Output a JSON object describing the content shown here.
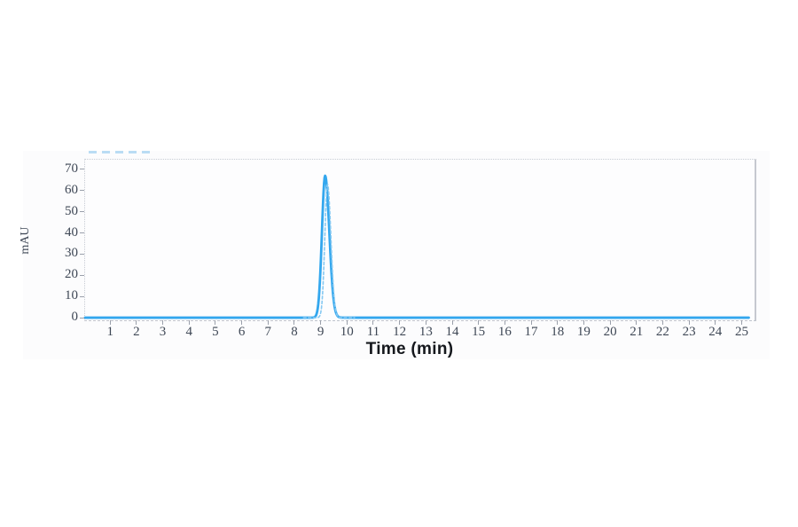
{
  "figure": {
    "x_axis_title": "Time (min)",
    "y_axis_title": "mAU",
    "trace_color": "#33a7ee",
    "ghost_trace_color": "#86c9f2",
    "frame_color": "#c6c9d0",
    "tick_label_color": "#3e4755",
    "clipped_annotation_color": "#aed7f2"
  },
  "chart_data": {
    "type": "line",
    "title": "",
    "xlabel": "Time (min)",
    "ylabel": "mAU",
    "x_ticks": [
      1,
      2,
      3,
      4,
      5,
      6,
      7,
      8,
      9,
      10,
      11,
      12,
      13,
      14,
      15,
      16,
      17,
      18,
      19,
      20,
      21,
      22,
      23,
      24,
      25
    ],
    "y_ticks": [
      0,
      10,
      20,
      30,
      40,
      50,
      60,
      70
    ],
    "xlim": [
      0.05,
      25.49
    ],
    "ylim": [
      -1.24,
      74.58
    ],
    "grid": false,
    "legend_position": "none",
    "series": [
      {
        "name": "chromatogram-trace",
        "color": "#33a7ee",
        "stroke_width": 2.8,
        "style": "solid",
        "baseline_mAU": 0,
        "x_start": 0.05,
        "x_end": 25.28,
        "peaks": [
          {
            "center_min": 9.17,
            "height_mAU": 67,
            "sigma_left_min": 0.12,
            "sigma_right_min": 0.16
          }
        ]
      },
      {
        "name": "ghost-trace",
        "color": "#86c9f2",
        "stroke_width": 1.6,
        "style": "dashed",
        "baseline_mAU": 0,
        "x_start": 8.35,
        "x_end": 10.3,
        "peaks": [
          {
            "center_min": 9.26,
            "height_mAU": 63,
            "sigma_left_min": 0.1,
            "sigma_right_min": 0.13
          }
        ]
      }
    ]
  }
}
